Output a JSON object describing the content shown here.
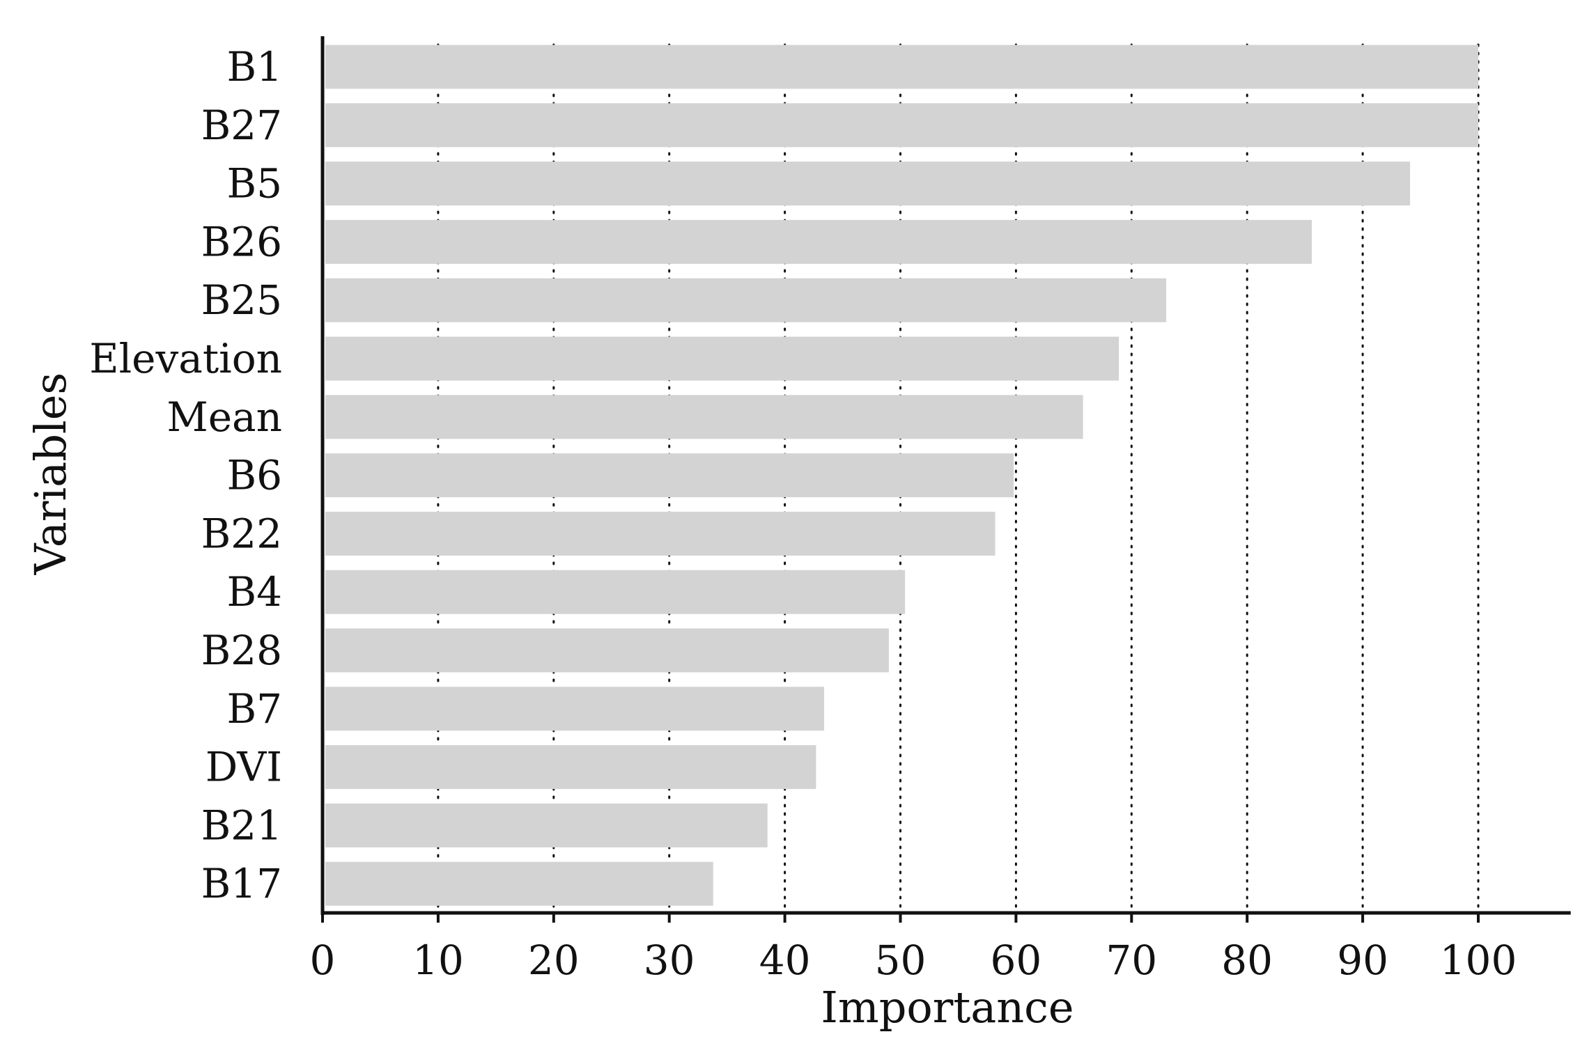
{
  "chart_data": {
    "type": "bar",
    "orientation": "horizontal",
    "categories": [
      "B1",
      "B27",
      "B5",
      "B26",
      "B25",
      "Elevation",
      "Mean",
      "B6",
      "B22",
      "B4",
      "B28",
      "B7",
      "DVI",
      "B21",
      "B17"
    ],
    "values": [
      100,
      100,
      94.1,
      85.6,
      73,
      68.9,
      65.8,
      59.8,
      58.2,
      50.4,
      49,
      43.4,
      42.7,
      38.5,
      33.8
    ],
    "xlabel": "Importance",
    "ylabel": "Variables",
    "xlim": [
      0,
      108
    ],
    "xticks": [
      0,
      10,
      20,
      30,
      40,
      50,
      60,
      70,
      80,
      90,
      100
    ],
    "grid": "vertical-dotted",
    "bar_color": "#d3d3d3",
    "grid_color": "#111111",
    "axis_color": "#111111"
  }
}
